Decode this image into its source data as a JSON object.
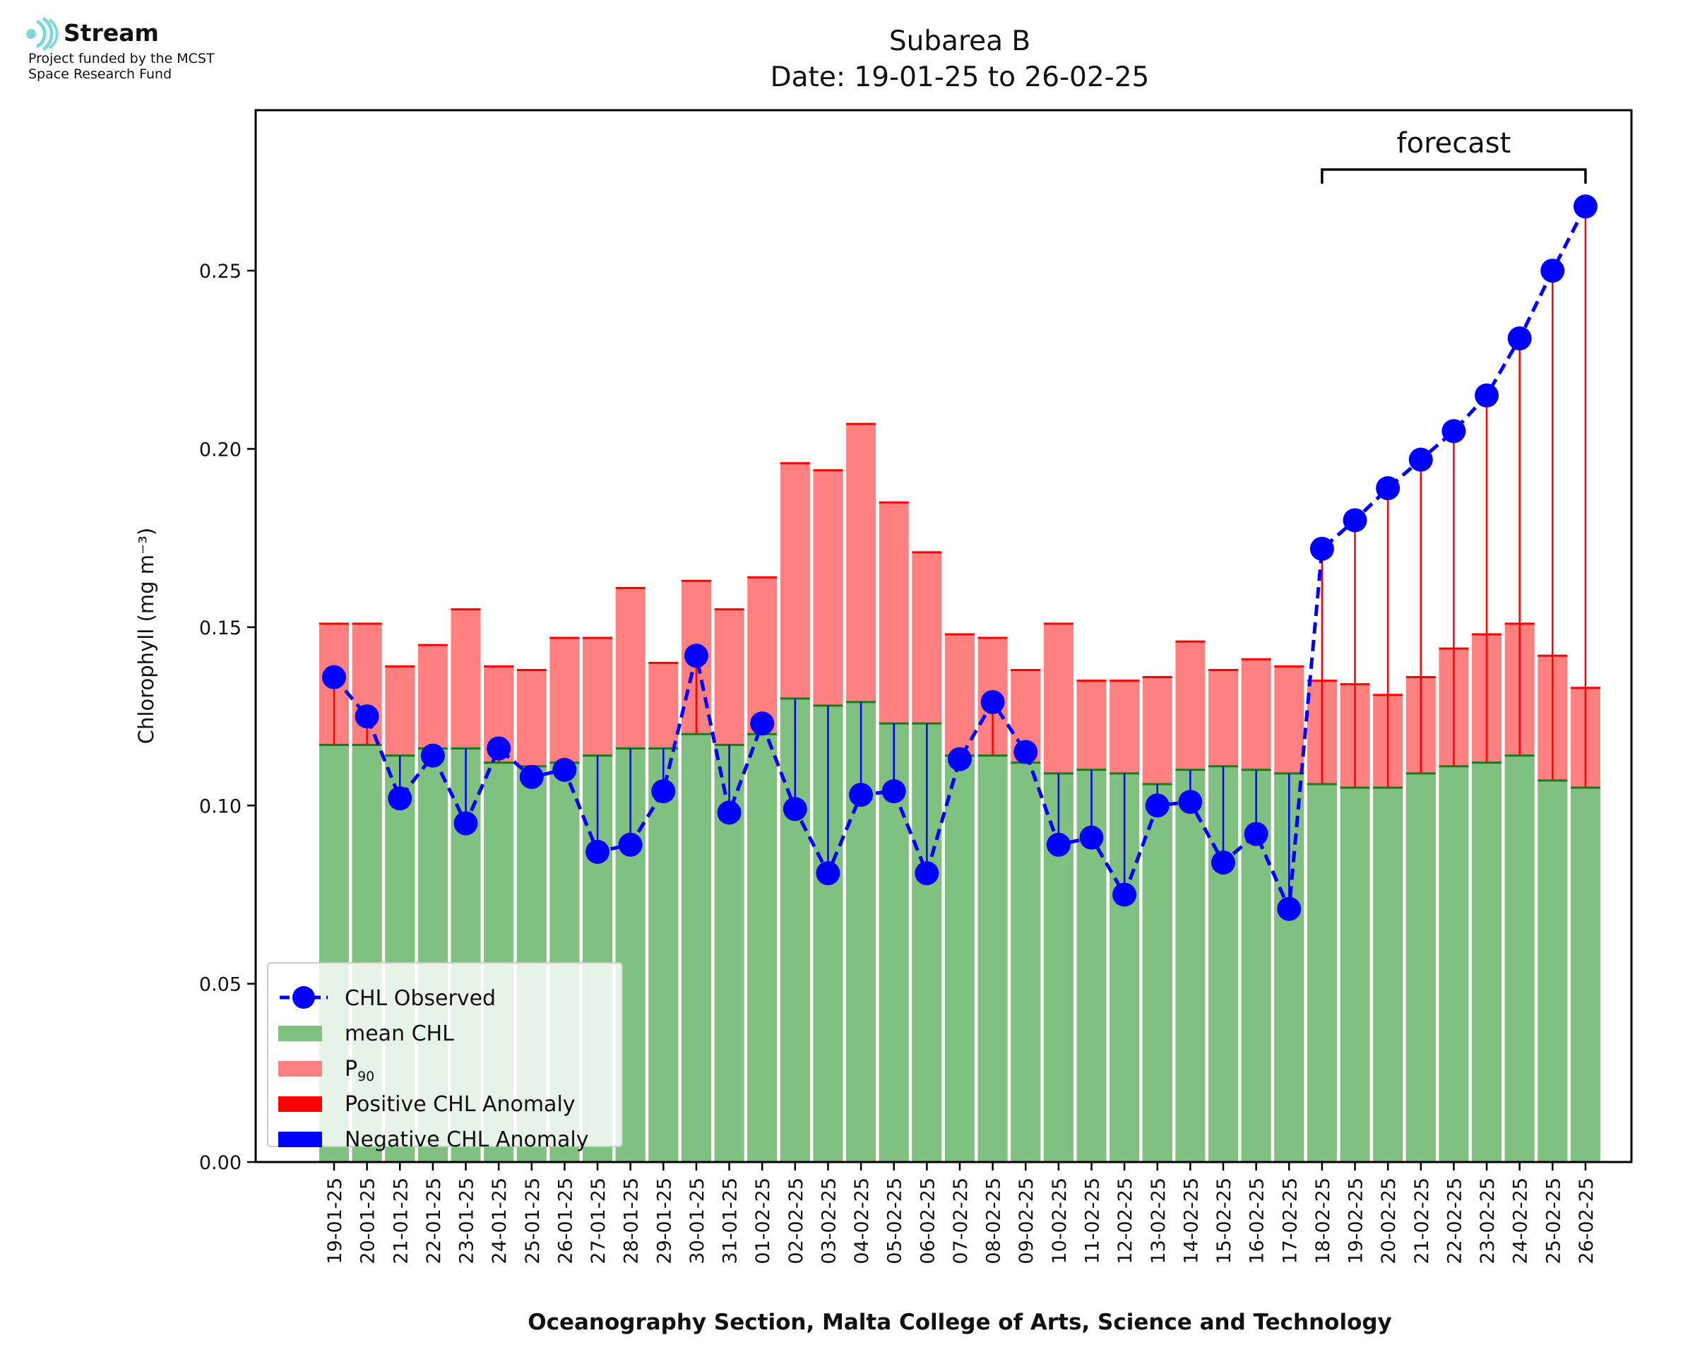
{
  "logo": {
    "name": "Stream",
    "subtitle_line1": "Project funded by the MCST",
    "subtitle_line2": "Space Research Fund",
    "icon": "stream-logo-icon"
  },
  "colors": {
    "mean": "#80c080",
    "mean_edge": "#1a7a1a",
    "p90": "#ff8080",
    "positive": "#ff0000",
    "negative": "#0000ff",
    "observed": "#0000ff"
  },
  "chart_data": {
    "type": "bar",
    "title": "Subarea B",
    "subtitle": "Date: 19-01-25 to 26-02-25",
    "xlabel": "Oceanography Section, Malta College of Arts, Science and Technology",
    "ylabel": "Chlorophyll (mg m⁻³)",
    "ylim": [
      0,
      0.295
    ],
    "yticks": [
      "0.00",
      "0.05",
      "0.10",
      "0.15",
      "0.20",
      "0.25"
    ],
    "categories": [
      "19-01-25",
      "20-01-25",
      "21-01-25",
      "22-01-25",
      "23-01-25",
      "24-01-25",
      "25-01-25",
      "26-01-25",
      "27-01-25",
      "28-01-25",
      "29-01-25",
      "30-01-25",
      "31-01-25",
      "01-02-25",
      "02-02-25",
      "03-02-25",
      "04-02-25",
      "05-02-25",
      "06-02-25",
      "07-02-25",
      "08-02-25",
      "09-02-25",
      "10-02-25",
      "11-02-25",
      "12-02-25",
      "13-02-25",
      "14-02-25",
      "15-02-25",
      "16-02-25",
      "17-02-25",
      "18-02-25",
      "19-02-25",
      "20-02-25",
      "21-02-25",
      "22-02-25",
      "23-02-25",
      "24-02-25",
      "25-02-25",
      "26-02-25"
    ],
    "series": [
      {
        "name": "mean CHL",
        "values": [
          0.117,
          0.117,
          0.114,
          0.116,
          0.116,
          0.112,
          0.111,
          0.112,
          0.114,
          0.116,
          0.116,
          0.12,
          0.117,
          0.12,
          0.13,
          0.128,
          0.129,
          0.123,
          0.123,
          0.114,
          0.114,
          0.112,
          0.109,
          0.11,
          0.109,
          0.106,
          0.11,
          0.111,
          0.11,
          0.109,
          0.106,
          0.105,
          0.105,
          0.109,
          0.111,
          0.112,
          0.114,
          0.107,
          0.105
        ]
      },
      {
        "name": "P₉₀",
        "values": [
          0.151,
          0.151,
          0.139,
          0.145,
          0.155,
          0.139,
          0.138,
          0.147,
          0.147,
          0.161,
          0.14,
          0.163,
          0.155,
          0.164,
          0.196,
          0.194,
          0.207,
          0.185,
          0.171,
          0.148,
          0.147,
          0.138,
          0.151,
          0.135,
          0.135,
          0.136,
          0.146,
          0.138,
          0.141,
          0.139,
          0.135,
          0.134,
          0.131,
          0.136,
          0.144,
          0.148,
          0.151,
          0.142,
          0.133
        ]
      },
      {
        "name": "CHL Observed",
        "values": [
          0.136,
          0.125,
          0.102,
          0.114,
          0.095,
          0.116,
          0.108,
          0.11,
          0.087,
          0.089,
          0.104,
          0.142,
          0.098,
          0.123,
          0.099,
          0.081,
          0.103,
          0.104,
          0.081,
          0.113,
          0.129,
          0.115,
          0.089,
          0.091,
          0.075,
          0.1,
          0.101,
          0.084,
          0.092,
          0.071,
          0.172,
          0.18,
          0.189,
          0.197,
          0.205,
          0.215,
          0.231,
          0.25,
          0.268
        ]
      }
    ],
    "forecast": {
      "label": "forecast",
      "start": "18-02-25",
      "end": "26-02-25"
    },
    "legend": {
      "position": "lower-left",
      "items": [
        {
          "label": "CHL Observed"
        },
        {
          "label": "mean CHL"
        },
        {
          "label_main": "P",
          "label_sub": "90"
        },
        {
          "label": "Positive CHL Anomaly"
        },
        {
          "label": "Negative CHL Anomaly"
        }
      ]
    }
  }
}
